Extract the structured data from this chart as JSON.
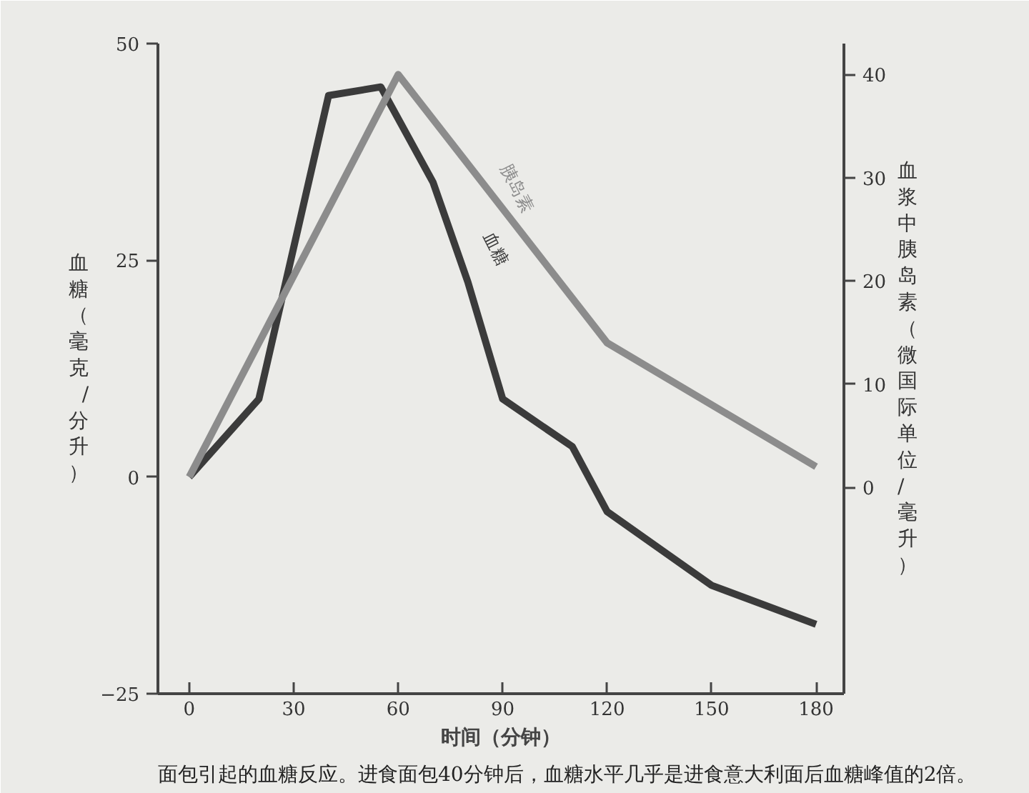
{
  "chart_data": {
    "type": "line",
    "xlabel": "时间（分钟）",
    "ylabel": "血糖（毫克/分升）",
    "y2label": "血浆中胰岛素（微国际单位/毫升）",
    "xlim": [
      -9,
      188
    ],
    "xticks": [
      0,
      30,
      60,
      90,
      120,
      150,
      180
    ],
    "ylim": [
      -25,
      50
    ],
    "yticks": [
      -25,
      0,
      25,
      50
    ],
    "y2lim": [
      -20,
      43
    ],
    "y2ticks": [
      0,
      10,
      20,
      30,
      40
    ],
    "grid": false,
    "line_style": "solid",
    "marker": "none",
    "series": [
      {
        "name": "血糖",
        "color": "#3b3b3b",
        "x": [
          0,
          20,
          40,
          55,
          70,
          80,
          90,
          110,
          120,
          150,
          180
        ],
        "values": [
          0,
          9,
          44,
          45,
          34,
          22.5,
          9,
          3.5,
          -4,
          -12.5,
          -17
        ]
      },
      {
        "name": "胰岛素",
        "color": "#8c8c8c",
        "axis": "y2",
        "x": [
          0,
          60,
          120,
          180
        ],
        "values": [
          1,
          40,
          14,
          2
        ]
      }
    ],
    "annotations": [
      "面包引起的血糖反应。进食面包40分钟后，血糖水平几乎是进食意大利面后血糖峰值的2倍。"
    ]
  }
}
